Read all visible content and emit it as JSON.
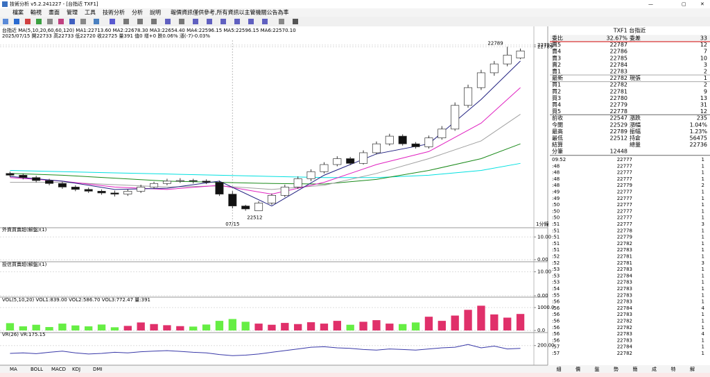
{
  "window": {
    "title": "技術分析 v5.2.241227 - [台指近 TXF1]",
    "menu": [
      "檔案",
      "輸視",
      "畫面",
      "管理",
      "工具",
      "技術分析",
      "分析",
      "說明"
    ],
    "notice": "報價資訊僅供參考,所有資訊以主管機關公告為準",
    "bottom_tabs": [
      "MA",
      "BOLL",
      "MACD",
      "KDJ",
      "DMI"
    ],
    "scale_label": "1分鐘"
  },
  "chart_data": [
    {
      "type": "candlestick",
      "header": "台指近 MA(5,10,20,60,60,120) MA1:22713.60 MA2:22678.30 MA3:22654.40 MA4:22596.15 MA5:22596.15 MA6:22570.10",
      "header2": "2025/07/15 開22733 高22733 低22720 收22725 量391 值0 增+0 跌0.06% 漲(-7)-0.03%",
      "categories": [
        null,
        null,
        null,
        null,
        null,
        null,
        null,
        null,
        null,
        null,
        null,
        null,
        null,
        null,
        null,
        null,
        null,
        "07/15",
        null,
        null,
        null,
        null,
        null,
        null,
        null,
        null,
        null,
        null,
        null,
        null,
        null,
        null,
        null,
        null,
        null,
        null,
        null,
        null,
        null,
        null
      ],
      "open": [
        22575,
        22572,
        22568,
        22563,
        22558,
        22552,
        22548,
        22545,
        22542,
        22540,
        22545,
        22552,
        22558,
        22562,
        22563,
        22562,
        22560,
        22540,
        22520,
        22512,
        22525,
        22538,
        22552,
        22566,
        22578,
        22590,
        22600,
        22592,
        22610,
        22625,
        22638,
        22625,
        22620,
        22635,
        22650,
        22690,
        22720,
        22745,
        22760,
        22770
      ],
      "high": [
        22578,
        22575,
        22571,
        22566,
        22561,
        22555,
        22551,
        22548,
        22546,
        22548,
        22556,
        22561,
        22566,
        22567,
        22566,
        22565,
        22563,
        22545,
        22522,
        22528,
        22541,
        22556,
        22570,
        22582,
        22594,
        22604,
        22603,
        22614,
        22629,
        22642,
        22641,
        22628,
        22639,
        22655,
        22695,
        22725,
        22750,
        22765,
        22789,
        22786
      ],
      "low": [
        22569,
        22565,
        22560,
        22555,
        22549,
        22545,
        22542,
        22539,
        22536,
        22537,
        22542,
        22549,
        22555,
        22559,
        22558,
        22557,
        22537,
        22516,
        22512,
        22514,
        22522,
        22535,
        22549,
        22562,
        22575,
        22587,
        22589,
        22590,
        22607,
        22622,
        22622,
        22617,
        22617,
        22632,
        22647,
        22686,
        22716,
        22740,
        22756,
        22768
      ],
      "close": [
        22572,
        22568,
        22563,
        22558,
        22552,
        22548,
        22545,
        22542,
        22540,
        22545,
        22552,
        22558,
        22562,
        22563,
        22562,
        22560,
        22540,
        22520,
        22515,
        22525,
        22538,
        22552,
        22566,
        22578,
        22590,
        22600,
        22592,
        22610,
        22625,
        22638,
        22625,
        22620,
        22635,
        22650,
        22690,
        22720,
        22745,
        22760,
        22775,
        22782
      ],
      "up_color": "#ffffff",
      "down_color": "#111111",
      "outline_color": "#333333",
      "series": [
        {
          "color": "#00e0e0",
          "x": [
            0,
            4,
            8,
            12,
            16,
            20,
            24,
            28,
            32,
            36,
            39
          ],
          "values": [
            22580,
            22578,
            22576,
            22574,
            22572,
            22570,
            22568,
            22568,
            22572,
            22580,
            22592
          ]
        },
        {
          "color": "#1a8a1a",
          "x": [
            0,
            4,
            8,
            12,
            16,
            20,
            24,
            28,
            32,
            36,
            39
          ],
          "values": [
            22575,
            22572,
            22567,
            22562,
            22560,
            22558,
            22557,
            22565,
            22580,
            22600,
            22625
          ]
        },
        {
          "color": "#a0a0a0",
          "x": [
            0,
            4,
            8,
            12,
            16,
            20,
            24,
            28,
            32,
            36,
            39
          ],
          "values": [
            22560,
            22560,
            22556,
            22552,
            22554,
            22548,
            22555,
            22575,
            22600,
            22630,
            22675
          ]
        },
        {
          "color": "#e020c0",
          "x": [
            0,
            4,
            8,
            12,
            16,
            20,
            24,
            28,
            32,
            36,
            39
          ],
          "values": [
            22568,
            22562,
            22552,
            22548,
            22555,
            22540,
            22560,
            22590,
            22612,
            22660,
            22720
          ]
        },
        {
          "color": "#202080",
          "x": [
            0,
            4,
            8,
            12,
            16,
            20,
            24,
            28,
            32,
            36,
            39
          ],
          "values": [
            22570,
            22562,
            22548,
            22550,
            22562,
            22520,
            22572,
            22608,
            22625,
            22700,
            22765
          ]
        }
      ],
      "ylim": [
        22495,
        22800
      ],
      "yticks": [
        22792,
        22789
      ],
      "ytick_colors": [
        "#e00000",
        "#888888"
      ],
      "annotations": [
        {
          "value": 22789,
          "index": 38
        },
        {
          "value": 22512,
          "index": 18
        }
      ]
    },
    {
      "type": "bar",
      "title": "外資買賣超(解盤)(1)",
      "values": [],
      "ylim": [
        0,
        11
      ],
      "yticks": [
        {
          "value": 10,
          "label": "10.00"
        },
        {
          "value": 0,
          "label": "0.00"
        }
      ]
    },
    {
      "type": "bar",
      "title": "投信買賣超(解盤)(1)",
      "values": [],
      "ylim": [
        0,
        11
      ],
      "yticks": [
        {
          "value": 10,
          "label": "10.00"
        },
        {
          "value": 0,
          "label": "0.00"
        }
      ]
    },
    {
      "type": "bar",
      "title": "VOL(5,10,20) VOL1:839.00 VOL2:586.70 VOL3:772.47 量:391",
      "values": [
        320,
        180,
        250,
        150,
        300,
        220,
        180,
        260,
        140,
        200,
        350,
        280,
        230,
        190,
        170,
        260,
        420,
        500,
        380,
        300,
        250,
        330,
        280,
        360,
        300,
        420,
        250,
        380,
        450,
        300,
        280,
        350,
        600,
        420,
        650,
        900,
        1080,
        700,
        560,
        720
      ],
      "up_color": "#e0306a",
      "down_color": "#66ee44",
      "ylim": [
        0,
        1150
      ],
      "yticks": [
        {
          "value": 1000,
          "label": "1000.0"
        },
        {
          "value": 0,
          "label": "0.0"
        }
      ]
    },
    {
      "type": "line",
      "title": "VR(26) VR:175.15",
      "color": "#3838a8",
      "values": [
        130,
        135,
        128,
        140,
        150,
        135,
        125,
        130,
        140,
        135,
        145,
        150,
        155,
        148,
        140,
        135,
        120,
        110,
        115,
        125,
        140,
        155,
        170,
        185,
        190,
        180,
        175,
        165,
        160,
        170,
        165,
        160,
        170,
        180,
        185,
        210,
        180,
        195,
        170,
        175
      ],
      "ylim": [
        50,
        260
      ],
      "yticks": [
        {
          "value": 200,
          "label": "200.00"
        }
      ]
    }
  ],
  "quote": {
    "title": "TXF1 台指近",
    "summary": [
      "委比",
      "32.67%",
      "委差",
      "33"
    ],
    "levels": [
      [
        "賣5",
        "22787",
        "12"
      ],
      [
        "賣4",
        "22786",
        "7"
      ],
      [
        "賣3",
        "22785",
        "10"
      ],
      [
        "賣2",
        "22784",
        "3"
      ],
      [
        "賣1",
        "22783",
        "2"
      ],
      [
        "最新",
        "22782",
        "現張",
        "1"
      ],
      [
        "買1",
        "22782",
        "2"
      ],
      [
        "買2",
        "22781",
        "9"
      ],
      [
        "買3",
        "22780",
        "13"
      ],
      [
        "買4",
        "22779",
        "31"
      ],
      [
        "買5",
        "22778",
        "12"
      ]
    ],
    "stats": [
      [
        "前收",
        "22547",
        "漲跌",
        "235"
      ],
      [
        "今開",
        "22529",
        "漲幅",
        "1.04%"
      ],
      [
        "最高",
        "22789",
        "振幅",
        "1.23%"
      ],
      [
        "最低",
        "22512",
        "持倉",
        "56475"
      ],
      [
        "結算",
        "",
        "總量",
        "22736"
      ],
      [
        "分筆",
        "12448"
      ]
    ],
    "stat_colors": [
      "#000000",
      "#008800",
      "#d00000",
      "#008800",
      "#000000",
      "#000000"
    ],
    "ticks": [
      [
        "09:52",
        "22777",
        "1"
      ],
      [
        ":48",
        "22777",
        "1"
      ],
      [
        ":48",
        "22777",
        "1"
      ],
      [
        ":48",
        "22777",
        "1"
      ],
      [
        ":48",
        "22779",
        "2"
      ],
      [
        ":49",
        "22777",
        "1"
      ],
      [
        ":49",
        "22777",
        "1"
      ],
      [
        ":50",
        "22777",
        "1"
      ],
      [
        ":50",
        "22777",
        "1"
      ],
      [
        ":50",
        "22777",
        "1"
      ],
      [
        ":51",
        "22777",
        "3"
      ],
      [
        ":51",
        "22778",
        "1"
      ],
      [
        ":51",
        "22779",
        "1"
      ],
      [
        ":51",
        "22782",
        "1"
      ],
      [
        ":51",
        "22783",
        "1"
      ],
      [
        ":52",
        "22781",
        "1"
      ],
      [
        ":52",
        "22781",
        "3"
      ],
      [
        ":53",
        "22783",
        "1"
      ],
      [
        ":53",
        "22784",
        "1"
      ],
      [
        ":53",
        "22783",
        "1"
      ],
      [
        ":54",
        "22783",
        "1"
      ],
      [
        ":55",
        "22783",
        "1"
      ],
      [
        ":56",
        "22783",
        "1"
      ],
      [
        ":56",
        "22784",
        "4"
      ],
      [
        ":56",
        "22783",
        "1"
      ],
      [
        ":56",
        "22782",
        "1"
      ],
      [
        ":56",
        "22782",
        "1"
      ],
      [
        ":56",
        "22783",
        "4"
      ],
      [
        ":56",
        "22783",
        "1"
      ],
      [
        ":57",
        "22784",
        "1"
      ],
      [
        ":57",
        "22782",
        "1"
      ]
    ],
    "tabs": [
      "細",
      "價",
      "盤",
      "勢",
      "簡",
      "成",
      "特",
      "解"
    ]
  }
}
